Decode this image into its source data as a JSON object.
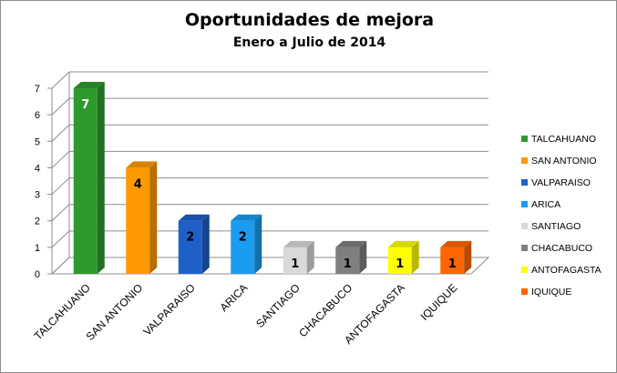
{
  "chart_data": {
    "type": "bar",
    "title": "Oportunidades de mejora",
    "subtitle": "Enero  a Julio de 2014",
    "categories": [
      "TALCAHUANO",
      "SAN ANTONIO",
      "VALPARAISO",
      "ARICA",
      "SANTIAGO",
      "CHACABUCO",
      "ANTOFAGASTA",
      "IQUIQUE"
    ],
    "values": [
      7,
      4,
      2,
      2,
      1,
      1,
      1,
      1
    ],
    "colors": [
      "#2e9a2e",
      "#ff9900",
      "#1f5fc8",
      "#1a9cf0",
      "#d9d9d9",
      "#7f7f7f",
      "#ffff00",
      "#ff6600"
    ],
    "label_colors": [
      "#ffffff",
      "#000000",
      "#000000",
      "#000000",
      "#000000",
      "#000000",
      "#000000",
      "#000000"
    ],
    "ylim": [
      0,
      7
    ],
    "yticks": [
      0,
      1,
      2,
      3,
      4,
      5,
      6,
      7
    ],
    "grid": true,
    "three_d": true,
    "legend_position": "right",
    "xlabel": "",
    "ylabel": ""
  }
}
